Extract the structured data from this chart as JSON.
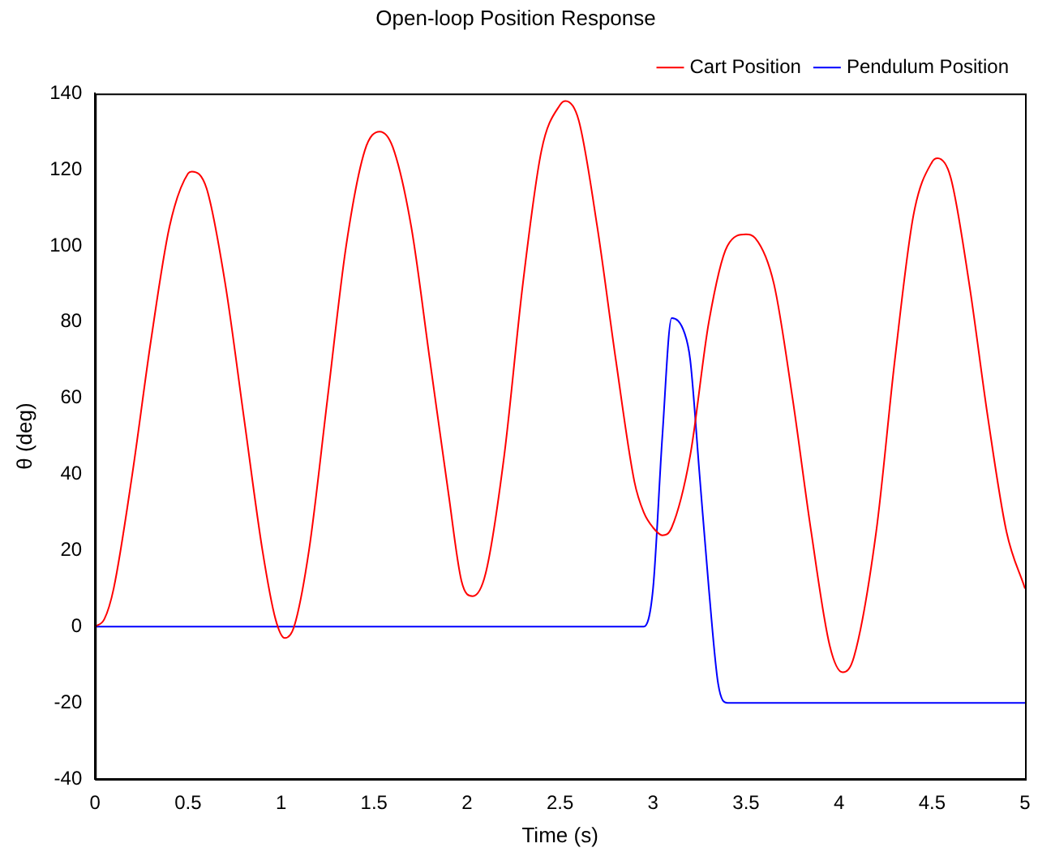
{
  "chart_data": {
    "type": "line",
    "title": "Open-loop Position Response",
    "xlabel": "Time (s)",
    "ylabel": "θ (deg)",
    "xlim": [
      0,
      5
    ],
    "xticks": [
      0,
      0.5,
      1,
      1.5,
      2,
      2.5,
      3,
      3.5,
      4,
      4.5,
      5
    ],
    "ylim": [
      -40,
      140
    ],
    "yticks": [
      -40,
      -20,
      0,
      20,
      40,
      60,
      80,
      100,
      120,
      140
    ],
    "grid": false,
    "legend": "top right",
    "marker": "none",
    "line_style": "solid",
    "series": [
      {
        "name": "Cart Position",
        "color": "#ff0000",
        "x": [
          0,
          0.05,
          0.1,
          0.2,
          0.3,
          0.4,
          0.5,
          0.52,
          0.6,
          0.7,
          0.8,
          0.9,
          0.97,
          1.02,
          1.07,
          1.15,
          1.25,
          1.35,
          1.45,
          1.53,
          1.6,
          1.7,
          1.8,
          1.9,
          1.97,
          2.03,
          2.1,
          2.2,
          2.3,
          2.4,
          2.5,
          2.53,
          2.6,
          2.7,
          2.8,
          2.9,
          2.95,
          3.0,
          3.05,
          3.1,
          3.2,
          3.3,
          3.4,
          3.5,
          3.55,
          3.65,
          3.75,
          3.85,
          3.95,
          4.02,
          4.08,
          4.2,
          4.3,
          4.4,
          4.5,
          4.53,
          4.6,
          4.7,
          4.8,
          4.9,
          5.0
        ],
        "values": [
          0,
          2,
          10,
          40,
          75,
          105,
          119,
          119.5,
          115,
          90,
          55,
          20,
          2,
          -3,
          0,
          20,
          60,
          100,
          125,
          130,
          126,
          105,
          70,
          35,
          12,
          8,
          14,
          45,
          90,
          125,
          137,
          138,
          133,
          105,
          70,
          38,
          30,
          26,
          24,
          26,
          45,
          80,
          100,
          103,
          102,
          90,
          60,
          25,
          -5,
          -12,
          -8,
          25,
          70,
          108,
          122,
          123,
          118,
          90,
          55,
          25,
          10
        ]
      },
      {
        "name": "Pendulum Position",
        "color": "#0000ff",
        "x": [
          0,
          2.7,
          2.95,
          3.0,
          3.05,
          3.1,
          3.17,
          3.2,
          3.25,
          3.3,
          3.35,
          3.4,
          5.0
        ],
        "values": [
          0,
          0,
          0,
          10,
          50,
          81,
          77,
          70,
          40,
          10,
          -15,
          -20,
          -20
        ]
      }
    ]
  }
}
